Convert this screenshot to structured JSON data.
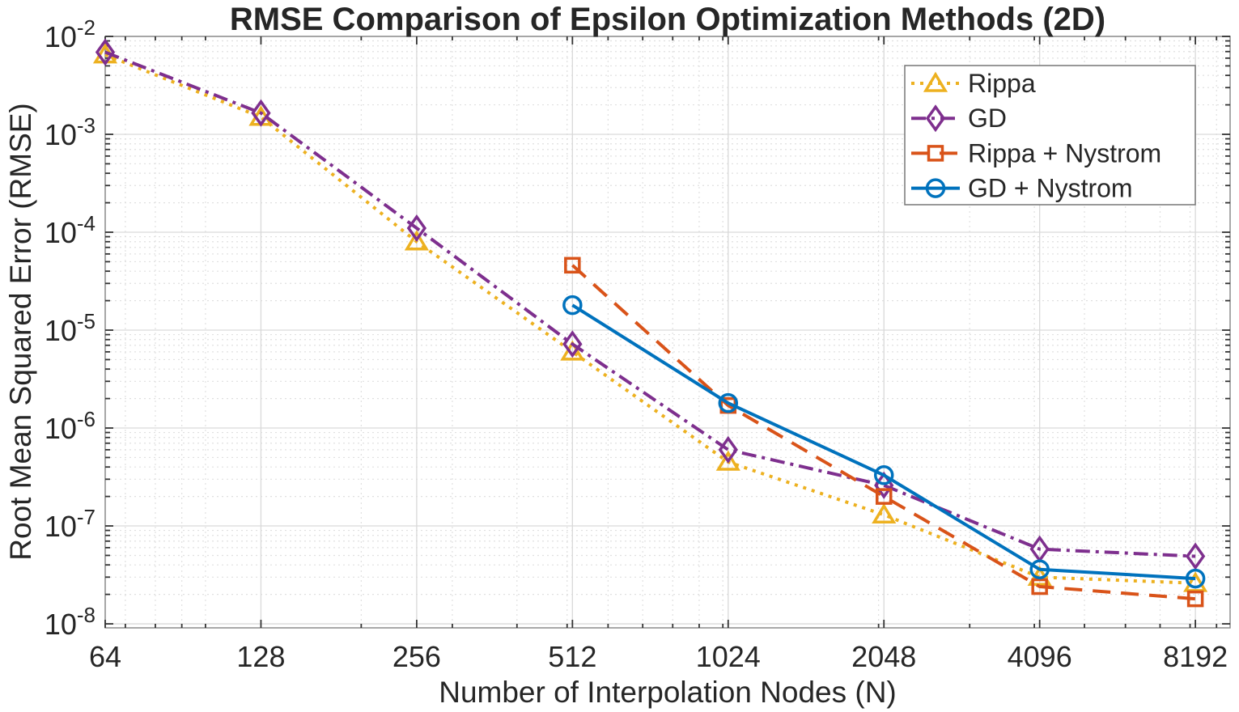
{
  "figure": {
    "title": "RMSE Comparison of Epsilon Optimization Methods (2D)",
    "x_label": "Number of Interpolation Nodes (N)",
    "y_label": "Root Mean Squared Error (RMSE)"
  },
  "chart_data": {
    "type": "line",
    "title": "RMSE Comparison of Epsilon Optimization Methods (2D)",
    "xlabel": "Number of Interpolation Nodes (N)",
    "ylabel": "Root Mean Squared Error (RMSE)",
    "x_scale": "log",
    "y_scale": "log",
    "xlim": [
      64,
      9560
    ],
    "ylim": [
      9.1e-09,
      0.01
    ],
    "grid": "major+minor",
    "legend_position": "top-right-inside",
    "x_ticks": [
      64,
      128,
      256,
      512,
      1024,
      2048,
      4096,
      8192
    ],
    "x_tick_labels": [
      "64",
      "128",
      "256",
      "512",
      "1024",
      "2048",
      "4096",
      "8192"
    ],
    "y_ticks": [
      0.01,
      0.001,
      0.0001,
      1e-05,
      1e-06,
      1e-07,
      1e-08
    ],
    "y_tick_base": "10",
    "y_tick_exponents": [
      "-2",
      "-3",
      "-4",
      "-5",
      "-6",
      "-7",
      "-8"
    ],
    "series": [
      {
        "name": "Rippa",
        "color": "#EDB120",
        "line_style": "dotted",
        "marker": "triangle",
        "x": [
          64,
          128,
          256,
          512,
          1024,
          2048,
          4096,
          8192
        ],
        "y": [
          0.0065,
          0.0015,
          8e-05,
          6e-06,
          4.5e-07,
          1.3e-07,
          3e-08,
          2.6e-08
        ]
      },
      {
        "name": "GD",
        "color": "#7E2F8E",
        "line_style": "dashdot",
        "marker": "diamond",
        "x": [
          64,
          128,
          256,
          512,
          1024,
          2048,
          4096,
          8192
        ],
        "y": [
          0.0069,
          0.00165,
          0.00011,
          7.2e-06,
          6e-07,
          2.6e-07,
          5.8e-08,
          4.9e-08
        ]
      },
      {
        "name": "Rippa + Nystrom",
        "color": "#D95319",
        "line_style": "dashed",
        "marker": "square",
        "x": [
          512,
          1024,
          2048,
          4096,
          8192
        ],
        "y": [
          4.6e-05,
          1.7e-06,
          2e-07,
          2.4e-08,
          1.8e-08
        ]
      },
      {
        "name": "GD + Nystrom",
        "color": "#0072BD",
        "line_style": "solid",
        "marker": "circle",
        "x": [
          512,
          1024,
          2048,
          4096,
          8192
        ],
        "y": [
          1.8e-05,
          1.8e-06,
          3.3e-07,
          3.6e-08,
          2.9e-08
        ]
      }
    ],
    "colors": {
      "axis_text": "#262626",
      "spine": "#8c8c8c",
      "tick": "#333333",
      "grid_major": "#d9d9d9",
      "grid_minor": "#e0e0e0",
      "legend_border": "#777777",
      "legend_bg": "#ffffff"
    }
  }
}
